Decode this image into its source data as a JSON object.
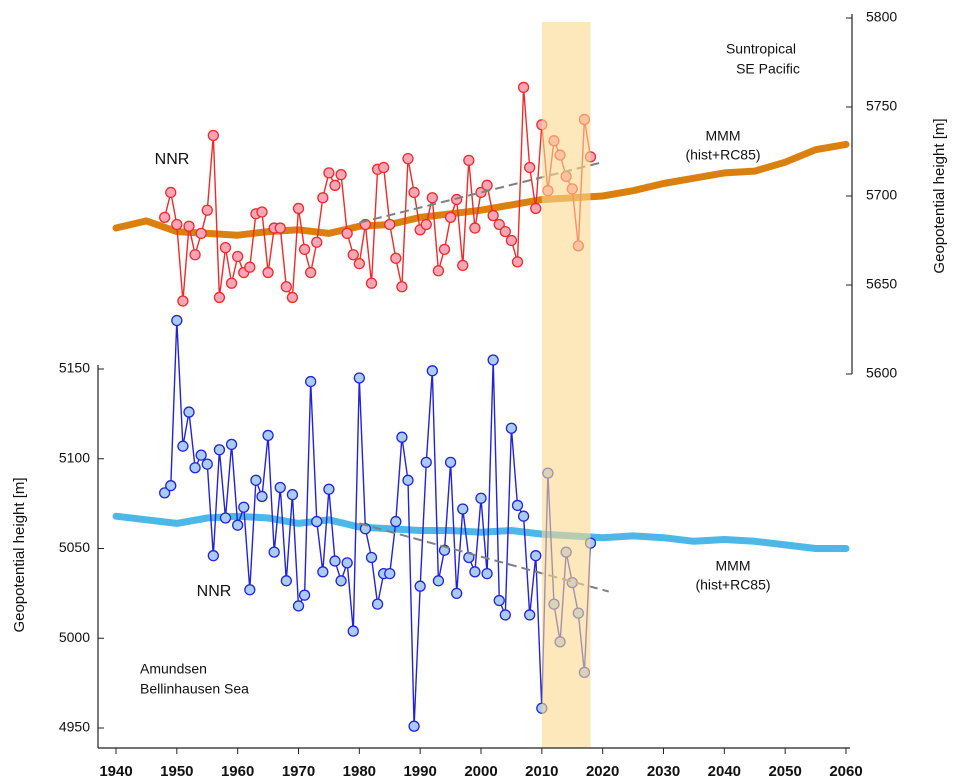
{
  "chart_data": [
    {
      "type": "line",
      "ylabel": "Geopotential height [m]",
      "annotations": [
        "Suntropical",
        "SE Pacific"
      ],
      "xlim": [
        1940,
        2060
      ],
      "ylim": [
        5600,
        5800
      ],
      "yticks": [
        5600,
        5650,
        5700,
        5750,
        5800
      ],
      "series": [
        {
          "name": "NNR",
          "color": "#ee2a2a",
          "marker_color": "#f7a6b8",
          "x": [
            1948,
            1949,
            1950,
            1951,
            1952,
            1953,
            1954,
            1955,
            1956,
            1957,
            1958,
            1959,
            1960,
            1961,
            1962,
            1963,
            1964,
            1965,
            1966,
            1967,
            1968,
            1969,
            1970,
            1971,
            1972,
            1973,
            1974,
            1975,
            1976,
            1977,
            1978,
            1979,
            1980,
            1981,
            1982,
            1983,
            1984,
            1985,
            1986,
            1987,
            1988,
            1989,
            1990,
            1991,
            1992,
            1993,
            1994,
            1995,
            1996,
            1997,
            1998,
            1999,
            2000,
            2001,
            2002,
            2003,
            2004,
            2005,
            2006,
            2007,
            2008,
            2009,
            2010,
            2011,
            2012,
            2013,
            2014,
            2015,
            2016,
            2017,
            2018
          ],
          "values": [
            5688,
            5702,
            5684,
            5641,
            5683,
            5667,
            5679,
            5692,
            5734,
            5643,
            5671,
            5651,
            5666,
            5657,
            5660,
            5690,
            5691,
            5657,
            5682,
            5682,
            5649,
            5643,
            5693,
            5670,
            5657,
            5674,
            5699,
            5713,
            5706,
            5712,
            5679,
            5667,
            5662,
            5684,
            5651,
            5715,
            5716,
            5684,
            5665,
            5649,
            5721,
            5702,
            5681,
            5684,
            5699,
            5658,
            5670,
            5688,
            5698,
            5661,
            5720,
            5682,
            5702,
            5706,
            5689,
            5684,
            5680,
            5675,
            5663,
            5761,
            5716,
            5693,
            5740,
            5703,
            5731,
            5723,
            5711,
            5704,
            5672,
            5743,
            5722
          ]
        },
        {
          "name": "MMM",
          "note": "(hist+RC85)",
          "color": "#d9800f",
          "x": [
            1940,
            1945,
            1950,
            1955,
            1960,
            1965,
            1970,
            1975,
            1980,
            1985,
            1990,
            1995,
            2000,
            2005,
            2010,
            2015,
            2020,
            2025,
            2030,
            2035,
            2040,
            2045,
            2050,
            2055,
            2060
          ],
          "values": [
            5682,
            5686,
            5680,
            5679,
            5678,
            5680,
            5681,
            5679,
            5683,
            5684,
            5688,
            5690,
            5692,
            5695,
            5698,
            5699,
            5700,
            5703,
            5707,
            5710,
            5713,
            5714,
            5719,
            5726,
            5729
          ]
        }
      ],
      "trend": {
        "color": "#808080",
        "x": [
          1980,
          2020
        ],
        "values": [
          5685,
          5719
        ]
      }
    },
    {
      "type": "line",
      "ylabel": "Geopotential height [m]",
      "annotations": [
        "Amundsen",
        "Bellinhausen Sea"
      ],
      "xlim": [
        1940,
        2060
      ],
      "xticks": [
        1940,
        1950,
        1960,
        1970,
        1980,
        1990,
        2000,
        2010,
        2020,
        2030,
        2040,
        2050,
        2060
      ],
      "ylim": [
        4950,
        5150
      ],
      "yticks": [
        4950,
        5000,
        5050,
        5100,
        5150
      ],
      "highlight_x": [
        2010,
        2018
      ],
      "highlight_color": "#fbd98f",
      "series": [
        {
          "name": "NNR",
          "color": "#2323d6",
          "marker_color": "#a9cdf2",
          "x": [
            1948,
            1949,
            1950,
            1951,
            1952,
            1953,
            1954,
            1955,
            1956,
            1957,
            1958,
            1959,
            1960,
            1961,
            1962,
            1963,
            1964,
            1965,
            1966,
            1967,
            1968,
            1969,
            1970,
            1971,
            1972,
            1973,
            1974,
            1975,
            1976,
            1977,
            1978,
            1979,
            1980,
            1981,
            1982,
            1983,
            1984,
            1985,
            1986,
            1987,
            1988,
            1989,
            1990,
            1991,
            1992,
            1993,
            1994,
            1995,
            1996,
            1997,
            1998,
            1999,
            2000,
            2001,
            2002,
            2003,
            2004,
            2005,
            2006,
            2007,
            2008,
            2009,
            2010,
            2011,
            2012,
            2013,
            2014,
            2015,
            2016,
            2017,
            2018
          ],
          "values": [
            5081,
            5085,
            5177,
            5107,
            5126,
            5095,
            5102,
            5097,
            5046,
            5105,
            5067,
            5108,
            5063,
            5073,
            5027,
            5088,
            5079,
            5113,
            5048,
            5084,
            5032,
            5080,
            5018,
            5024,
            5143,
            5065,
            5037,
            5083,
            5043,
            5032,
            5042,
            5004,
            5145,
            5061,
            5045,
            5019,
            5036,
            5036,
            5065,
            5112,
            5088,
            4951,
            5029,
            5098,
            5149,
            5032,
            5049,
            5098,
            5025,
            5072,
            5045,
            5037,
            5078,
            5036,
            5155,
            5021,
            5013,
            5117,
            5074,
            5068,
            5013,
            5046,
            4961,
            5092,
            5019,
            4998,
            5048,
            5031,
            5014,
            4981,
            5053
          ]
        },
        {
          "name": "MMM",
          "note": "(hist+RC85)",
          "color": "#4db8e8",
          "x": [
            1940,
            1945,
            1950,
            1955,
            1960,
            1965,
            1970,
            1975,
            1980,
            1985,
            1990,
            1995,
            2000,
            2005,
            2010,
            2015,
            2020,
            2025,
            2030,
            2035,
            2040,
            2045,
            2050,
            2055,
            2060
          ],
          "values": [
            5068,
            5066,
            5064,
            5067,
            5068,
            5067,
            5064,
            5066,
            5062,
            5061,
            5060,
            5060,
            5059,
            5060,
            5058,
            5057,
            5056,
            5057,
            5056,
            5054,
            5055,
            5054,
            5052,
            5050,
            5050
          ]
        }
      ],
      "trend": {
        "color": "#808080",
        "x": [
          1980,
          2021
        ],
        "values": [
          5064,
          5026
        ]
      }
    }
  ]
}
